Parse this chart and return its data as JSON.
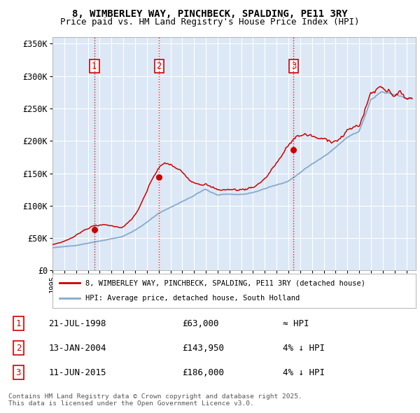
{
  "title": "8, WIMBERLEY WAY, PINCHBECK, SPALDING, PE11 3RY",
  "subtitle": "Price paid vs. HM Land Registry's House Price Index (HPI)",
  "ylim": [
    0,
    360000
  ],
  "yticks": [
    0,
    50000,
    100000,
    150000,
    200000,
    250000,
    300000,
    350000
  ],
  "ytick_labels": [
    "£0",
    "£50K",
    "£100K",
    "£150K",
    "£200K",
    "£250K",
    "£300K",
    "£350K"
  ],
  "xlim_start": 1995.0,
  "xlim_end": 2025.8,
  "sale_dates": [
    1998.55,
    2004.04,
    2015.44
  ],
  "sale_prices": [
    63000,
    143950,
    186000
  ],
  "sale_labels": [
    "1",
    "2",
    "3"
  ],
  "vline_color": "#cc0000",
  "dot_color": "#cc0000",
  "line_color_red": "#cc0000",
  "line_color_blue": "#88aacc",
  "legend_line1": "8, WIMBERLEY WAY, PINCHBECK, SPALDING, PE11 3RY (detached house)",
  "legend_line2": "HPI: Average price, detached house, South Holland",
  "table_entries": [
    {
      "num": "1",
      "date": "21-JUL-1998",
      "price": "£63,000",
      "note": "≈ HPI"
    },
    {
      "num": "2",
      "date": "13-JAN-2004",
      "price": "£143,950",
      "note": "4% ↓ HPI"
    },
    {
      "num": "3",
      "date": "11-JUN-2015",
      "price": "£186,000",
      "note": "4% ↓ HPI"
    }
  ],
  "footer": "Contains HM Land Registry data © Crown copyright and database right 2025.\nThis data is licensed under the Open Government Licence v3.0.",
  "background_color": "#ffffff",
  "plot_bg_color": "#dce8f5",
  "grid_color": "#ffffff",
  "title_fontsize": 10,
  "subtitle_fontsize": 9
}
